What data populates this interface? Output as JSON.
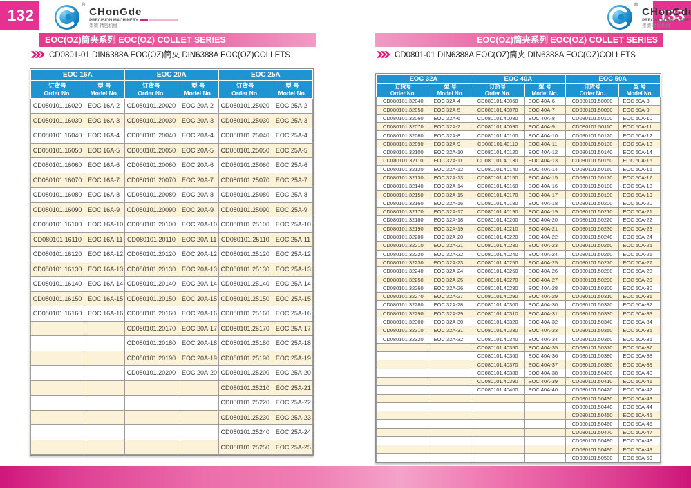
{
  "brand": {
    "name": "CHonGde",
    "sub": "PRECISION MACHINERY",
    "cn": "崇德 精密机械",
    "registered": "®"
  },
  "columns": {
    "order_cn": "订货号",
    "order_en": "Order No.",
    "model_cn": "型 号",
    "model_en": "Model No."
  },
  "colors": {
    "accent_pink": "#E73190",
    "banner_pink_dark": "#E23A8C",
    "banner_pink_light": "#F09CC4",
    "header_blue": "#1E95D2",
    "row_cream": "#FCF2D8",
    "cell_border": "#9C9C9C"
  },
  "page_left": {
    "page_number": "132",
    "banner_text": "EOC(OZ)筒夹系列  EOC(OZ) COLLET SERIES",
    "title": "CD0801-01 DIN6388A EOC(OZ)筒夹 DIN6388A EOC(OZ)COLLETS",
    "table": {
      "groups": [
        "EOC 16A",
        "EOC 20A",
        "EOC 25A"
      ],
      "rows": [
        [
          "CD080101.16020",
          "EOC 16A-2",
          "CD080101.20020",
          "EOC 20A-2",
          "CD080101.25020",
          "EOC 25A-2"
        ],
        [
          "CD080101.16030",
          "EOC 16A-3",
          "CD080101.20030",
          "EOC 20A-3",
          "CD080101.25030",
          "EOC 25A-3"
        ],
        [
          "CD080101.16040",
          "EOC 16A-4",
          "CD080101.20040",
          "EOC 20A-4",
          "CD080101.25040",
          "EOC 25A-4"
        ],
        [
          "CD080101.16050",
          "EOC 16A-5",
          "CD080101.20050",
          "EOC 20A-5",
          "CD080101.25050",
          "EOC 25A-5"
        ],
        [
          "CD080101.16060",
          "EOC 16A-6",
          "CD080101.20060",
          "EOC 20A-6",
          "CD080101.25060",
          "EOC 25A-6"
        ],
        [
          "CD080101.16070",
          "EOC 16A-7",
          "CD080101.20070",
          "EOC 20A-7",
          "CD080101.25070",
          "EOC 25A-7"
        ],
        [
          "CD080101.16080",
          "EOC 16A-8",
          "CD080101.20080",
          "EOC 20A-8",
          "CD080101.25080",
          "EOC 25A-8"
        ],
        [
          "CD080101.16090",
          "EOC 16A-9",
          "CD080101.20090",
          "EOC 20A-9",
          "CD080101.25090",
          "EOC 25A-9"
        ],
        [
          "CD080101.16100",
          "EOC 16A-10",
          "CD080101.20100",
          "EOC 20A-10",
          "CD080101.25100",
          "EOC 25A-10"
        ],
        [
          "CD080101.16110",
          "EOC 16A-11",
          "CD080101.20110",
          "EOC 20A-11",
          "CD080101.25110",
          "EOC 25A-11"
        ],
        [
          "CD080101.16120",
          "EOC 16A-12",
          "CD080101.20120",
          "EOC 20A-12",
          "CD080101.25120",
          "EOC 25A-12"
        ],
        [
          "CD080101.16130",
          "EOC 16A-13",
          "CD080101.20130",
          "EOC 20A-13",
          "CD080101.25130",
          "EOC 25A-13"
        ],
        [
          "CD080101.16140",
          "EOC 16A-14",
          "CD080101.20140",
          "EOC 20A-14",
          "CD080101.25140",
          "EOC 25A-14"
        ],
        [
          "CD080101.16150",
          "EOC 16A-15",
          "CD080101.20150",
          "EOC 20A-15",
          "CD080101.25150",
          "EOC 25A-15"
        ],
        [
          "CD080101.16160",
          "EOC 16A-16",
          "CD080101.20160",
          "EOC 20A-16",
          "CD080101.25160",
          "EOC 25A-16"
        ],
        [
          "",
          "",
          "CD080101.20170",
          "EOC 20A-17",
          "CD080101.25170",
          "EOC 25A-17"
        ],
        [
          "",
          "",
          "CD080101.20180",
          "EOC 20A-18",
          "CD080101.25180",
          "EOC 25A-18"
        ],
        [
          "",
          "",
          "CD080101.20190",
          "EOC 20A-19",
          "CD080101.25190",
          "EOC 25A-19"
        ],
        [
          "",
          "",
          "CD080101.20200",
          "EOC 20A-20",
          "CD080101.25200",
          "EOC 25A-20"
        ],
        [
          "",
          "",
          "",
          "",
          "CD080101.25210",
          "EOC 25A-21"
        ],
        [
          "",
          "",
          "",
          "",
          "CD080101.25220",
          "EOC 25A-22"
        ],
        [
          "",
          "",
          "",
          "",
          "CD080101.25230",
          "EOC 25A-23"
        ],
        [
          "",
          "",
          "",
          "",
          "CD080101.25240",
          "EOC 25A-24"
        ],
        [
          "",
          "",
          "",
          "",
          "CD080101.25250",
          "EOC 25A-25"
        ]
      ]
    }
  },
  "page_right": {
    "page_number": "133",
    "banner_text": "EOC(OZ)筒夹系列  EOC(OZ) COLLET SERIES",
    "title": "CD0801-01 DIN6388A EOC(OZ)筒夹  DIN6388A EOC(OZ)COLLETS",
    "table": {
      "groups": [
        "EOC 32A",
        "EOC 40A",
        "EOC 50A"
      ],
      "rows": [
        [
          "CD080101.32040",
          "EOC 32A-4",
          "CD080101.40060",
          "EOC 40A-6",
          "CD080101.50080",
          "EOC 50A-8"
        ],
        [
          "CD080101.32050",
          "EOC 32A-5",
          "CD080101.40070",
          "EOC 40A-7",
          "CD080101.50090",
          "EOC 50A-9"
        ],
        [
          "CD080101.32060",
          "EOC 32A-6",
          "CD080101.40080",
          "EOC 40A-8",
          "CD080101.50100",
          "EOC 50A-10"
        ],
        [
          "CD080101.32070",
          "EOC 32A-7",
          "CD080101.40090",
          "EOC 40A-9",
          "CD080101.50110",
          "EOC 50A-11"
        ],
        [
          "CD080101.32080",
          "EOC 32A-8",
          "CD080101.40100",
          "EOC 40A-10",
          "CD080101.50120",
          "EOC 50A-12"
        ],
        [
          "CD080101.32090",
          "EOC 32A-9",
          "CD080101.40110",
          "EOC 40A-11",
          "CD080101.50130",
          "EOC 50A-13"
        ],
        [
          "CD080101.32100",
          "EOC 32A-10",
          "CD080101.40120",
          "EOC 40A-12",
          "CD080101.50140",
          "EOC 50A-14"
        ],
        [
          "CD080101.32110",
          "EOC 32A-11",
          "CD080101.40130",
          "EOC 40A-13",
          "CD080101.50150",
          "EOC 50A-15"
        ],
        [
          "CD080101.32120",
          "EOC 32A-12",
          "CD080101.40140",
          "EOC 40A-14",
          "CD080101.50160",
          "EOC 50A-16"
        ],
        [
          "CD080101.32130",
          "EOC 32A-13",
          "CD080101.40150",
          "EOC 40A-15",
          "CD080101.50170",
          "EOC 50A-17"
        ],
        [
          "CD080101.32140",
          "EOC 32A-14",
          "CD080101.40160",
          "EOC 40A-16",
          "CD080101.50180",
          "EOC 50A-18"
        ],
        [
          "CD080101.32150",
          "EOC 32A-15",
          "CD080101.40170",
          "EOC 40A-17",
          "CD080101.50190",
          "EOC 50A-19"
        ],
        [
          "CD080101.32160",
          "EOC 32A-16",
          "CD080101.40180",
          "EOC 40A-18",
          "CD080101.50200",
          "EOC 50A-20"
        ],
        [
          "CD080101.32170",
          "EOC 32A-17",
          "CD080101.40190",
          "EOC 40A-19",
          "CD080101.50210",
          "EOC 50A-21"
        ],
        [
          "CD080101.32180",
          "EOC 32A-18",
          "CD080101.40200",
          "EOC 40A-20",
          "CD080101.50220",
          "EOC 50A-22"
        ],
        [
          "CD080101.32190",
          "EOC 32A-19",
          "CD080101.40210",
          "EOC 40A-21",
          "CD080101.50230",
          "EOC 50A-23"
        ],
        [
          "CD080101.32200",
          "EOC 32A-20",
          "CD080101.40220",
          "EOC 40A-22",
          "CD080101.50240",
          "EOC 50A-24"
        ],
        [
          "CD080101.32210",
          "EOC 32A-21",
          "CD080101.40230",
          "EOC 40A-23",
          "CD080101.50250",
          "EOC 50A-25"
        ],
        [
          "CD080101.32220",
          "EOC 32A-22",
          "CD080101.40240",
          "EOC 40A-24",
          "CD080101.50260",
          "EOC 50A-26"
        ],
        [
          "CD080101.32230",
          "EOC 32A-23",
          "CD080101.40250",
          "EOC 40A-25",
          "CD080101.50270",
          "EOC 50A-27"
        ],
        [
          "CD080101.32240",
          "EOC 32A-24",
          "CD080101.40260",
          "EOC 40A-26",
          "CD080101.50280",
          "EOC 50A-28"
        ],
        [
          "CD080101.32250",
          "EOC 32A-25",
          "CD080101.40270",
          "EOC 40A-27",
          "CD080101.50290",
          "EOC 50A-29"
        ],
        [
          "CD080101.32260",
          "EOC 32A-26",
          "CD080101.40280",
          "EOC 40A-28",
          "CD080101.50300",
          "EOC 50A-30"
        ],
        [
          "CD080101.32270",
          "EOC 32A-27",
          "CD080101.40290",
          "EOC 40A-29",
          "CD080101.50310",
          "EOC 50A-31"
        ],
        [
          "CD080101.32280",
          "EOC 32A-28",
          "CD080101.40300",
          "EOC 40A-30",
          "CD080101.50320",
          "EOC 50A-32"
        ],
        [
          "CD080101.32290",
          "EOC 32A-29",
          "CD080101.40310",
          "EOC 40A-31",
          "CD080101.50330",
          "EOC 50A-33"
        ],
        [
          "CD080101.32300",
          "EOC 32A-30",
          "CD080101.40320",
          "EOC 40A-32",
          "CD080101.50340",
          "EOC 50A-34"
        ],
        [
          "CD080101.32310",
          "EOC 32A-31",
          "CD080101.40330",
          "EOC 40A-33",
          "CD080101.50350",
          "EOC 50A-35"
        ],
        [
          "CD080101.32320",
          "EOC 32A-32",
          "CD080101.40340",
          "EOC 40A-34",
          "CD080101.50360",
          "EOC 50A-36"
        ],
        [
          "",
          "",
          "CD080101.40350",
          "EOC 40A-35",
          "CD080101.50370",
          "EOC 50A-37"
        ],
        [
          "",
          "",
          "CD080101.40360",
          "EOC 40A-36",
          "CD080101.50380",
          "EOC 50A-38"
        ],
        [
          "",
          "",
          "CD080101.40370",
          "EOC 40A-37",
          "CD080101.50390",
          "EOC 50A-39"
        ],
        [
          "",
          "",
          "CD080101.40380",
          "EOC 40A-38",
          "CD080101.50400",
          "EOC 50A-40"
        ],
        [
          "",
          "",
          "CD080101.40390",
          "EOC 40A-39",
          "CD080101.50410",
          "EOC 50A-41"
        ],
        [
          "",
          "",
          "CD080101.40400",
          "EOC 40A-40",
          "CD080101.50420",
          "EOC 50A-42"
        ],
        [
          "",
          "",
          "",
          "",
          "CD080101.50430",
          "EOC 50A-43"
        ],
        [
          "",
          "",
          "",
          "",
          "CD080101.50440",
          "EOC 50A-44"
        ],
        [
          "",
          "",
          "",
          "",
          "CD080101.50450",
          "EOC 50A-45"
        ],
        [
          "",
          "",
          "",
          "",
          "CD080101.50460",
          "EOC 50A-46"
        ],
        [
          "",
          "",
          "",
          "",
          "CD080101.50470",
          "EOC 50A-47"
        ],
        [
          "",
          "",
          "",
          "",
          "CD080101.50480",
          "EOC 50A-48"
        ],
        [
          "",
          "",
          "",
          "",
          "CD080101.50490",
          "EOC 50A-49"
        ],
        [
          "",
          "",
          "",
          "",
          "CD080101.50500",
          "EOC 50A-50"
        ]
      ]
    }
  }
}
